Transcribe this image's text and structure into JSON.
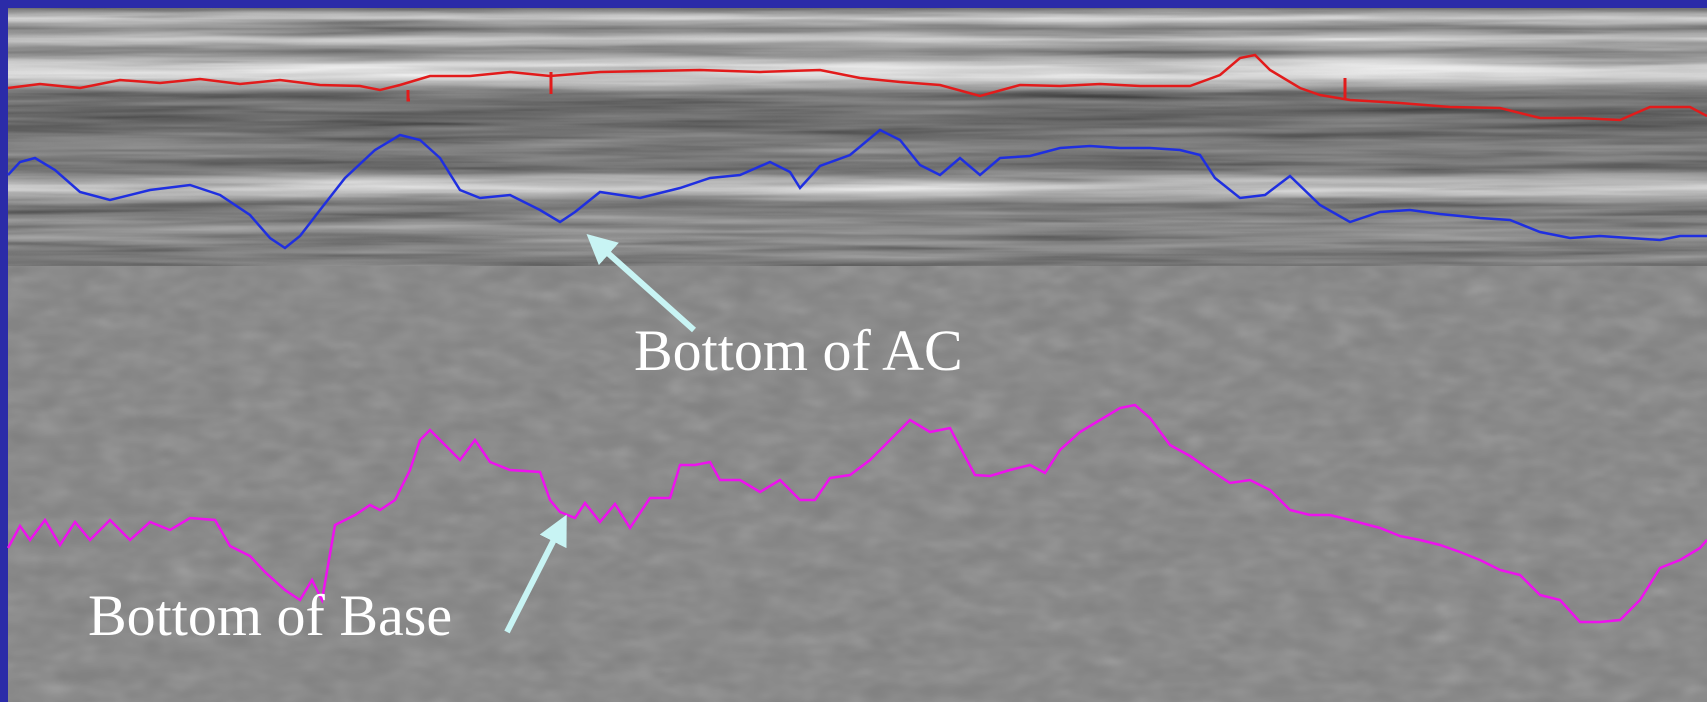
{
  "annotations": {
    "bottom_ac": "Bottom of AC",
    "bottom_base": "Bottom of Base"
  },
  "colors": {
    "background": "#2b2ba8",
    "surface_line": "#e21b1b",
    "ac_line": "#1f2fe0",
    "base_line": "#ee11ee",
    "arrow": "#c8f4f4"
  }
}
